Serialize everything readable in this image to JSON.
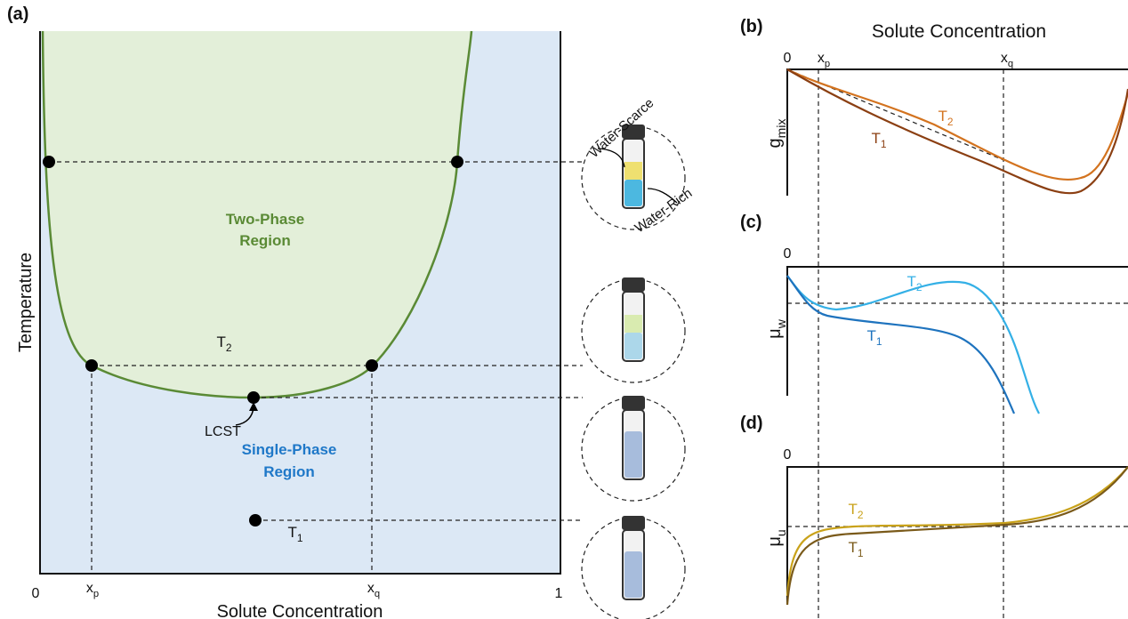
{
  "panel_labels": [
    "(a)",
    "(b)",
    "(c)",
    "(d)"
  ],
  "phase_diagram": {
    "x_axis_label": "Solute Concentration",
    "y_axis_label": "Temperature",
    "tick_start": "0",
    "tick_end": "1",
    "two_phase_region": [
      "Two-Phase",
      "Region"
    ],
    "single_phase_region": [
      "Single-Phase",
      "Region"
    ],
    "lcst": "LCST",
    "vial_labels": {
      "top": "Water-Scarce",
      "bottom": "Water-Rich"
    }
  },
  "free_energy_panels": {
    "x_axis_label": "Solute Concentration",
    "origin": "0"
  },
  "symbols": {
    "x_p": [
      "x",
      "p"
    ],
    "x_q": [
      "x",
      "q"
    ],
    "T_1": [
      "T",
      "1"
    ],
    "T_2": [
      "T",
      "2"
    ],
    "g_mix": [
      "g",
      "mix"
    ],
    "mu_w": [
      "μ",
      "w"
    ],
    "mu_u": [
      "μ",
      "u"
    ]
  }
}
